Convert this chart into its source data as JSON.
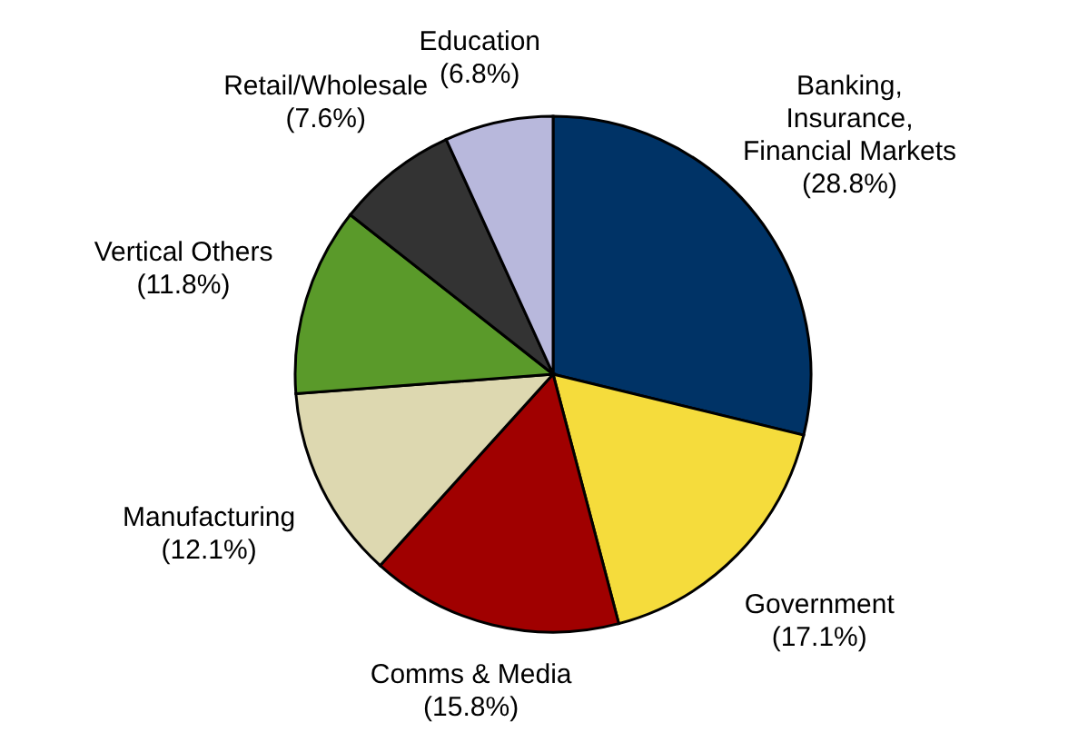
{
  "chart_data": {
    "type": "pie",
    "categories": [
      "Banking,\nInsurance,\nFinancial Markets",
      "Government",
      "Comms & Media",
      "Manufacturing",
      "Vertical Others",
      "Retail/Wholesale",
      "Education"
    ],
    "values": [
      28.8,
      17.1,
      15.8,
      12.1,
      11.8,
      7.6,
      6.8
    ],
    "value_labels": [
      "(28.8%)",
      "(17.1%)",
      "(15.8%)",
      "(12.1%)",
      "(11.8%)",
      "(7.6%)",
      "(6.8%)"
    ],
    "colors": [
      "#003366",
      "#f5dc3c",
      "#a00000",
      "#ddd8b0",
      "#5a9a2a",
      "#333333",
      "#b8b8dc"
    ]
  }
}
